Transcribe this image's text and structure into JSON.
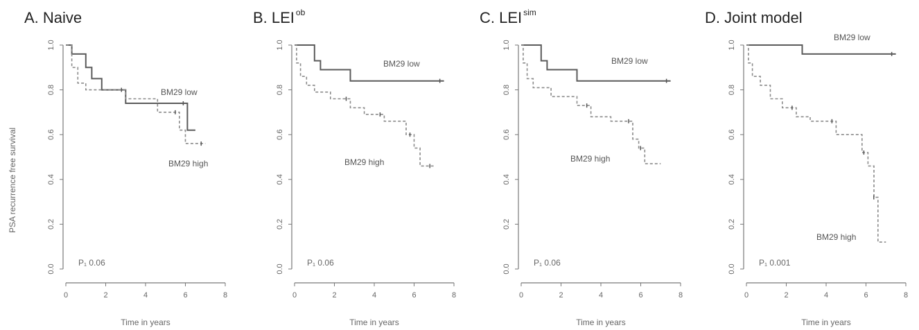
{
  "figure": {
    "ylabel": "PSA recurrence free survival",
    "xlabel": "Time in years"
  },
  "chart_data": [
    {
      "type": "line",
      "panel": "A",
      "title": "A. Naive",
      "title_sup": "",
      "xlim": [
        0,
        8
      ],
      "ylim": [
        0,
        1
      ],
      "xticks": [
        "0",
        "2",
        "4",
        "6",
        "8"
      ],
      "yticks": [
        "0.0",
        "0.2",
        "0.4",
        "0.6",
        "0.8",
        "1.0"
      ],
      "pvalue": "P₁ 0.06",
      "series": [
        {
          "name": "BM29 low",
          "style": "solid",
          "points": [
            [
              0,
              1.0
            ],
            [
              0.3,
              1.0
            ],
            [
              0.3,
              0.96
            ],
            [
              1.0,
              0.96
            ],
            [
              1.0,
              0.9
            ],
            [
              1.3,
              0.9
            ],
            [
              1.3,
              0.85
            ],
            [
              1.8,
              0.85
            ],
            [
              1.8,
              0.8
            ],
            [
              3.0,
              0.8
            ],
            [
              3.0,
              0.74
            ],
            [
              6.1,
              0.74
            ],
            [
              6.1,
              0.62
            ],
            [
              6.5,
              0.62
            ]
          ]
        },
        {
          "name": "BM29 high",
          "style": "dashed",
          "points": [
            [
              0,
              1.0
            ],
            [
              0.3,
              1.0
            ],
            [
              0.3,
              0.9
            ],
            [
              0.6,
              0.9
            ],
            [
              0.6,
              0.83
            ],
            [
              1.0,
              0.83
            ],
            [
              1.0,
              0.8
            ],
            [
              3.0,
              0.8
            ],
            [
              3.0,
              0.76
            ],
            [
              4.6,
              0.76
            ],
            [
              4.6,
              0.7
            ],
            [
              5.7,
              0.7
            ],
            [
              5.7,
              0.62
            ],
            [
              6.0,
              0.62
            ],
            [
              6.0,
              0.56
            ],
            [
              7.0,
              0.56
            ]
          ]
        }
      ],
      "labels": [
        {
          "text": "BM29 low"
        },
        {
          "text": "BM29 high"
        }
      ]
    },
    {
      "type": "line",
      "panel": "B",
      "title": "B. LEI",
      "title_sup": "ob",
      "xlim": [
        0,
        8
      ],
      "ylim": [
        0,
        1
      ],
      "xticks": [
        "0",
        "2",
        "4",
        "6",
        "8"
      ],
      "yticks": [
        "0.0",
        "0.2",
        "0.4",
        "0.6",
        "0.8",
        "1.0"
      ],
      "pvalue": "P₁ 0.06",
      "series": [
        {
          "name": "BM29 low",
          "style": "solid",
          "points": [
            [
              0,
              1.0
            ],
            [
              1.0,
              1.0
            ],
            [
              1.0,
              0.93
            ],
            [
              1.3,
              0.93
            ],
            [
              1.3,
              0.89
            ],
            [
              2.8,
              0.89
            ],
            [
              2.8,
              0.84
            ],
            [
              7.5,
              0.84
            ]
          ]
        },
        {
          "name": "BM29 high",
          "style": "dashed",
          "points": [
            [
              0,
              1.0
            ],
            [
              0.1,
              1.0
            ],
            [
              0.1,
              0.92
            ],
            [
              0.3,
              0.92
            ],
            [
              0.3,
              0.86
            ],
            [
              0.6,
              0.86
            ],
            [
              0.6,
              0.82
            ],
            [
              1.0,
              0.82
            ],
            [
              1.0,
              0.79
            ],
            [
              1.8,
              0.79
            ],
            [
              1.8,
              0.76
            ],
            [
              2.8,
              0.76
            ],
            [
              2.8,
              0.72
            ],
            [
              3.5,
              0.72
            ],
            [
              3.5,
              0.69
            ],
            [
              4.5,
              0.69
            ],
            [
              4.5,
              0.66
            ],
            [
              5.6,
              0.66
            ],
            [
              5.6,
              0.6
            ],
            [
              6.0,
              0.6
            ],
            [
              6.0,
              0.54
            ],
            [
              6.3,
              0.54
            ],
            [
              6.3,
              0.46
            ],
            [
              7.0,
              0.46
            ]
          ]
        }
      ],
      "labels": [
        {
          "text": "BM29 low"
        },
        {
          "text": "BM29 high"
        }
      ]
    },
    {
      "type": "line",
      "panel": "C",
      "title": "C. LEI",
      "title_sup": "sim",
      "xlim": [
        0,
        8
      ],
      "ylim": [
        0,
        1
      ],
      "xticks": [
        "0",
        "2",
        "4",
        "6",
        "8"
      ],
      "yticks": [
        "0.0",
        "0.2",
        "0.4",
        "0.6",
        "0.8",
        "1.0"
      ],
      "pvalue": "P₁ 0.06",
      "series": [
        {
          "name": "BM29 low",
          "style": "solid",
          "points": [
            [
              0,
              1.0
            ],
            [
              1.0,
              1.0
            ],
            [
              1.0,
              0.93
            ],
            [
              1.3,
              0.93
            ],
            [
              1.3,
              0.89
            ],
            [
              2.8,
              0.89
            ],
            [
              2.8,
              0.84
            ],
            [
              7.5,
              0.84
            ]
          ]
        },
        {
          "name": "BM29 high",
          "style": "dashed",
          "points": [
            [
              0,
              1.0
            ],
            [
              0.1,
              1.0
            ],
            [
              0.1,
              0.92
            ],
            [
              0.3,
              0.92
            ],
            [
              0.3,
              0.85
            ],
            [
              0.6,
              0.85
            ],
            [
              0.6,
              0.81
            ],
            [
              1.5,
              0.81
            ],
            [
              1.5,
              0.77
            ],
            [
              2.8,
              0.77
            ],
            [
              2.8,
              0.73
            ],
            [
              3.5,
              0.73
            ],
            [
              3.5,
              0.68
            ],
            [
              4.5,
              0.68
            ],
            [
              4.5,
              0.66
            ],
            [
              5.6,
              0.66
            ],
            [
              5.6,
              0.58
            ],
            [
              5.9,
              0.58
            ],
            [
              5.9,
              0.54
            ],
            [
              6.2,
              0.54
            ],
            [
              6.2,
              0.47
            ],
            [
              7.0,
              0.47
            ]
          ]
        }
      ],
      "labels": [
        {
          "text": "BM29 low"
        },
        {
          "text": "BM29 high"
        }
      ]
    },
    {
      "type": "line",
      "panel": "D",
      "title": "D. Joint model",
      "title_sup": "",
      "xlim": [
        0,
        8
      ],
      "ylim": [
        0,
        1
      ],
      "xticks": [
        "0",
        "2",
        "4",
        "6",
        "8"
      ],
      "yticks": [
        "0.0",
        "0.2",
        "0.4",
        "0.6",
        "0.8",
        "1.0"
      ],
      "pvalue": "P₁ 0.001",
      "series": [
        {
          "name": "BM29 low",
          "style": "solid",
          "points": [
            [
              0,
              1.0
            ],
            [
              2.8,
              1.0
            ],
            [
              2.8,
              0.96
            ],
            [
              7.5,
              0.96
            ]
          ]
        },
        {
          "name": "BM29 high",
          "style": "dashed",
          "points": [
            [
              0,
              1.0
            ],
            [
              0.1,
              1.0
            ],
            [
              0.1,
              0.92
            ],
            [
              0.3,
              0.92
            ],
            [
              0.3,
              0.86
            ],
            [
              0.7,
              0.86
            ],
            [
              0.7,
              0.82
            ],
            [
              1.2,
              0.82
            ],
            [
              1.2,
              0.76
            ],
            [
              1.8,
              0.76
            ],
            [
              1.8,
              0.72
            ],
            [
              2.5,
              0.72
            ],
            [
              2.5,
              0.68
            ],
            [
              3.2,
              0.68
            ],
            [
              3.2,
              0.66
            ],
            [
              4.5,
              0.66
            ],
            [
              4.5,
              0.6
            ],
            [
              5.8,
              0.6
            ],
            [
              5.8,
              0.52
            ],
            [
              6.1,
              0.52
            ],
            [
              6.1,
              0.46
            ],
            [
              6.4,
              0.46
            ],
            [
              6.4,
              0.32
            ],
            [
              6.6,
              0.32
            ],
            [
              6.6,
              0.12
            ],
            [
              7.0,
              0.12
            ]
          ]
        }
      ],
      "labels": [
        {
          "text": "BM29 low"
        },
        {
          "text": "BM29 high"
        }
      ]
    }
  ]
}
